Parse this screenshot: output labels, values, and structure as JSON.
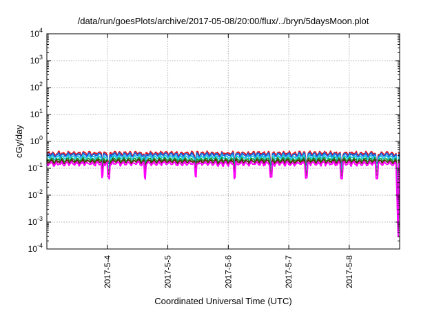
{
  "chart_data": {
    "type": "line",
    "title": "/data/run/goesPlots/archive/2017-05-08/20:00/flux/../bryn/5daysMoon.plot",
    "xlabel": "Coordinated Universal Time (UTC)",
    "ylabel": "cGy/day",
    "yscale": "log",
    "ylim": [
      0.0001,
      10000
    ],
    "y_ticks": [
      {
        "base": "10",
        "exp": "-4"
      },
      {
        "base": "10",
        "exp": "-3"
      },
      {
        "base": "10",
        "exp": "-2"
      },
      {
        "base": "10",
        "exp": "-1"
      },
      {
        "base": "10",
        "exp": "0"
      },
      {
        "base": "10",
        "exp": "1"
      },
      {
        "base": "10",
        "exp": "2"
      },
      {
        "base": "10",
        "exp": "3"
      },
      {
        "base": "10",
        "exp": "4"
      }
    ],
    "xlim": [
      "2017-05-03T00:00",
      "2017-05-08T20:00"
    ],
    "x_ticks": [
      "2017-5-4",
      "2017-5-5",
      "2017-5-6",
      "2017-5-7",
      "2017-5-8"
    ],
    "grid": true,
    "legend": "none",
    "data_end": "2017-05-08T18:40",
    "series": [
      {
        "color": "#e8141a",
        "baseline": 0.36
      },
      {
        "color": "#1f5fd6",
        "baseline": 0.32
      },
      {
        "color": "#20c8e8",
        "baseline": 0.26
      },
      {
        "color": "#1a9a3a",
        "baseline": 0.21
      },
      {
        "color": "#5a2a10",
        "baseline": 0.18
      },
      {
        "color": "#ff00ff",
        "baseline": 0.15
      }
    ],
    "dips": [
      "2017-05-03T22:00",
      "2017-05-04T00:30",
      "2017-05-04T15:00",
      "2017-05-05T11:00",
      "2017-05-06T02:30",
      "2017-05-06T17:00",
      "2017-05-07T07:00",
      "2017-05-07T21:00",
      "2017-05-08T11:00"
    ]
  }
}
